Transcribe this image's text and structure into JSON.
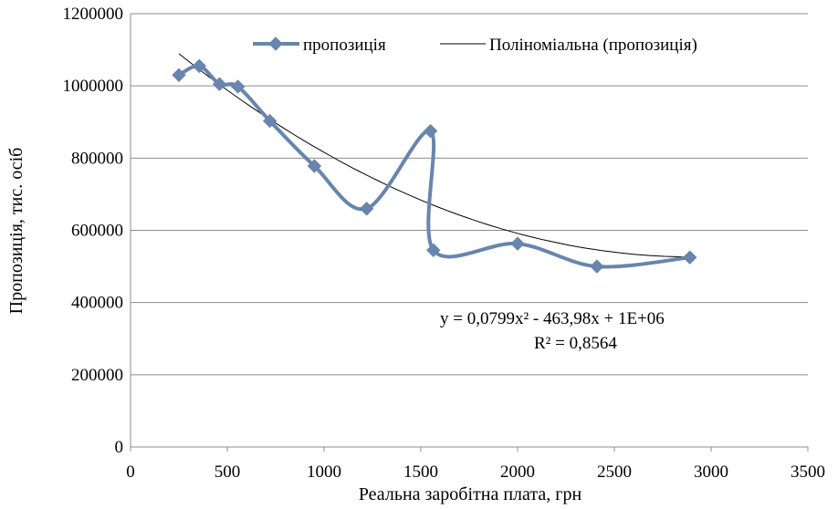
{
  "chart_data": {
    "type": "scatter",
    "title": "",
    "xlabel": "Реальна заробітна плата, грн",
    "ylabel": "Пропозиція, тис. осіб",
    "xlim": [
      0,
      3500
    ],
    "ylim": [
      0,
      1200000
    ],
    "x_ticks": [
      "0",
      "500",
      "1000",
      "1500",
      "2000",
      "2500",
      "3000",
      "3500"
    ],
    "y_ticks": [
      "0",
      "200000",
      "400000",
      "600000",
      "800000",
      "1000000",
      "1200000"
    ],
    "grid": "horizontal",
    "legend_position": "top",
    "series": [
      {
        "name": "пропозиція",
        "color": "#6785ad",
        "marker": "diamond",
        "line": "smooth",
        "points": [
          {
            "x": 250,
            "y": 1030000
          },
          {
            "x": 355,
            "y": 1055000
          },
          {
            "x": 460,
            "y": 1005000
          },
          {
            "x": 555,
            "y": 998000
          },
          {
            "x": 720,
            "y": 903000
          },
          {
            "x": 950,
            "y": 778000
          },
          {
            "x": 1220,
            "y": 660000
          },
          {
            "x": 1550,
            "y": 875000
          },
          {
            "x": 1565,
            "y": 545000
          },
          {
            "x": 2000,
            "y": 563000
          },
          {
            "x": 2410,
            "y": 500000
          },
          {
            "x": 2890,
            "y": 525000
          }
        ]
      }
    ],
    "trendline": {
      "name": "Поліноміальна (пропозиція)",
      "type": "polynomial",
      "order": 2,
      "color": "#000000",
      "x_from": 250,
      "x_to": 2890,
      "coefficients": {
        "a": 0.0799,
        "b": -463.98,
        "c": 1200000
      }
    },
    "annotations": {
      "equation": "y = 0,0799x² - 463,98x + 1E+06",
      "r_squared": "R² = 0,8564"
    }
  }
}
